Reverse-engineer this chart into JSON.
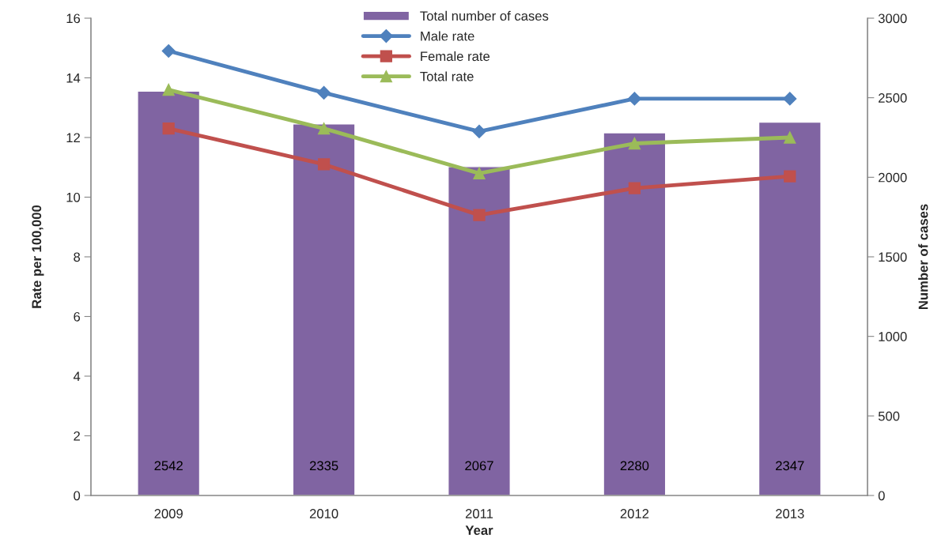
{
  "chart_data": {
    "type": "bar",
    "xlabel": "Year",
    "ylabel": "Rate per 100,000",
    "y2label": "Number of cases",
    "categories": [
      "2009",
      "2010",
      "2011",
      "2012",
      "2013"
    ],
    "series": [
      {
        "name": "Total number of cases",
        "axis": "y2",
        "color": "#8064a2",
        "values": [
          2542,
          2335,
          2067,
          2280,
          2347
        ],
        "data_labels": true
      },
      {
        "name": "Male rate",
        "type": "line",
        "color": "#4f81bd",
        "marker": "diamond",
        "values": [
          14.9,
          13.5,
          12.2,
          13.3,
          13.3
        ]
      },
      {
        "name": "Female rate",
        "type": "line",
        "color": "#c0504d",
        "marker": "square",
        "values": [
          12.3,
          11.1,
          9.4,
          10.3,
          10.7
        ]
      },
      {
        "name": "Total rate",
        "type": "line",
        "color": "#9bbb59",
        "marker": "triangle",
        "values": [
          13.6,
          12.3,
          10.8,
          11.8,
          12.0
        ]
      }
    ],
    "ylim": [
      0,
      16
    ],
    "yticks": [
      0,
      2,
      4,
      6,
      8,
      10,
      12,
      14,
      16
    ],
    "y2lim": [
      0,
      3000
    ],
    "y2ticks": [
      0,
      500,
      1000,
      1500,
      2000,
      2500,
      3000
    ],
    "grid": false,
    "legend": "top"
  }
}
